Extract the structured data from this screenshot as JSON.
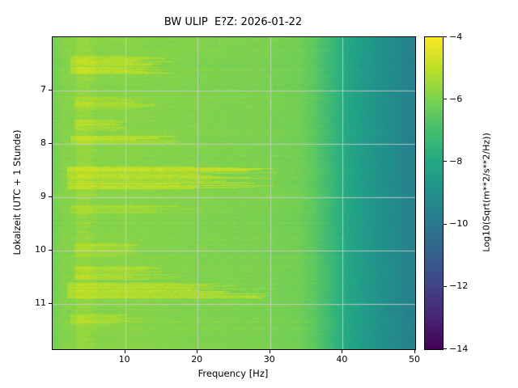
{
  "chart_data": {
    "type": "heatmap",
    "title": "BW ULIP  E?Z: 2026-01-22",
    "xlabel": "Frequency [Hz]",
    "ylabel": "Lokalzeit (UTC + 1 Stunde)",
    "x_range": [
      0,
      50
    ],
    "x_ticks": [
      10,
      20,
      30,
      40,
      50
    ],
    "y_range": [
      6.0,
      11.85
    ],
    "y_ticks": [
      7,
      8,
      9,
      10,
      11
    ],
    "grid": true,
    "grid_color": "#cccccc",
    "colormap": "viridis",
    "colorbar": {
      "label": "Log10(Sqrt(m**2/s**2/Hz))",
      "ticks": [
        -4,
        -6,
        -8,
        -10,
        -12,
        -14
      ],
      "range": [
        -14,
        -4
      ]
    },
    "background_profile": [
      [
        0,
        -6.1
      ],
      [
        1.5,
        -5.85
      ],
      [
        10,
        -5.8
      ],
      [
        20,
        -5.9
      ],
      [
        30,
        -6.0
      ],
      [
        34,
        -6.15
      ],
      [
        36,
        -6.5
      ],
      [
        38,
        -7.1
      ],
      [
        40,
        -7.8
      ],
      [
        42,
        -8.3
      ],
      [
        45,
        -8.9
      ],
      [
        48,
        -9.4
      ],
      [
        50,
        -9.7
      ]
    ],
    "events": [
      {
        "t": [
          6.35,
          6.7
        ],
        "f": [
          2.5,
          16
        ],
        "amp": 0.75
      },
      {
        "t": [
          7.12,
          7.38
        ],
        "f": [
          3,
          14
        ],
        "amp": 0.5
      },
      {
        "t": [
          7.55,
          7.75
        ],
        "f": [
          3,
          12
        ],
        "amp": 0.45
      },
      {
        "t": [
          7.85,
          8.0
        ],
        "f": [
          2.5,
          18
        ],
        "amp": 0.7
      },
      {
        "t": [
          8.42,
          8.85
        ],
        "f": [
          2,
          30
        ],
        "amp": 0.8
      },
      {
        "t": [
          9.15,
          9.3
        ],
        "f": [
          2.5,
          20
        ],
        "amp": 0.5
      },
      {
        "t": [
          9.85,
          10.1
        ],
        "f": [
          3,
          12
        ],
        "amp": 0.5
      },
      {
        "t": [
          10.3,
          10.55
        ],
        "f": [
          3,
          17
        ],
        "amp": 0.55
      },
      {
        "t": [
          10.6,
          10.9
        ],
        "f": [
          2,
          30
        ],
        "amp": 0.8
      },
      {
        "t": [
          11.2,
          11.4
        ],
        "f": [
          2.5,
          12
        ],
        "amp": 0.55
      },
      {
        "t": [
          6.0,
          11.85
        ],
        "f": [
          3.2,
          6.2
        ],
        "amp": 0.3
      }
    ]
  }
}
